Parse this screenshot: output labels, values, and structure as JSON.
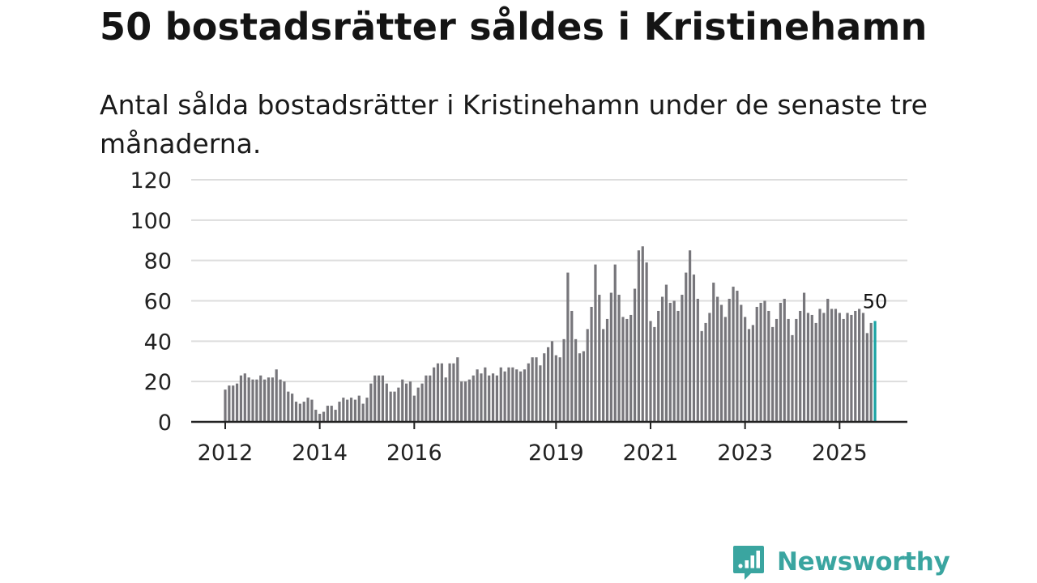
{
  "header": {
    "title": "50 bostadsrätter såldes i Kristinehamn",
    "subtitle": "Antal sålda bostadsrätter i Kristinehamn under de senaste tre månaderna."
  },
  "brand": {
    "name": "Newsworthy",
    "color": "#3aa5a0",
    "icon": "newsworthy-logo-icon"
  },
  "colors": {
    "bar": "#77767b",
    "highlight": "#1aa3a3",
    "grid": "#dddddd",
    "axis": "#222222"
  },
  "chart_data": {
    "type": "bar",
    "title": "50 bostadsrätter såldes i Kristinehamn",
    "subtitle": "Antal sålda bostadsrätter i Kristinehamn under de senaste tre månaderna.",
    "xlabel": "",
    "ylabel": "",
    "ylim": [
      0,
      120
    ],
    "yticks": [
      "0",
      "20",
      "40",
      "60",
      "80",
      "100",
      "120"
    ],
    "xticks": [
      {
        "label": "2012",
        "index": 0
      },
      {
        "label": "2014",
        "index": 24
      },
      {
        "label": "2016",
        "index": 48
      },
      {
        "label": "2019",
        "index": 84
      },
      {
        "label": "2021",
        "index": 108
      },
      {
        "label": "2023",
        "index": 132
      },
      {
        "label": "2025",
        "index": 156
      }
    ],
    "grid": true,
    "last_value_label": "50",
    "values": [
      16,
      18,
      18,
      19,
      23,
      24,
      22,
      21,
      21,
      23,
      21,
      22,
      22,
      26,
      21,
      20,
      15,
      14,
      10,
      9,
      10,
      12,
      11,
      6,
      4,
      5,
      8,
      8,
      6,
      10,
      12,
      11,
      12,
      11,
      13,
      9,
      12,
      19,
      23,
      23,
      23,
      19,
      15,
      15,
      17,
      21,
      19,
      20,
      13,
      17,
      19,
      23,
      23,
      27,
      29,
      29,
      22,
      29,
      29,
      32,
      20,
      20,
      21,
      23,
      26,
      24,
      27,
      23,
      24,
      23,
      27,
      25,
      27,
      27,
      26,
      25,
      26,
      29,
      32,
      32,
      28,
      34,
      37,
      40,
      33,
      32,
      41,
      74,
      55,
      41,
      34,
      35,
      46,
      57,
      78,
      63,
      46,
      51,
      64,
      78,
      63,
      52,
      51,
      53,
      66,
      85,
      87,
      79,
      50,
      47,
      55,
      62,
      68,
      59,
      60,
      55,
      63,
      74,
      85,
      73,
      61,
      45,
      49,
      54,
      69,
      62,
      58,
      52,
      61,
      67,
      65,
      58,
      52,
      46,
      48,
      57,
      59,
      60,
      55,
      47,
      51,
      59,
      61,
      51,
      43,
      51,
      55,
      64,
      54,
      53,
      49,
      56,
      54,
      61,
      56,
      56,
      54,
      51,
      54,
      53,
      55,
      56,
      54,
      44,
      49,
      50
    ]
  }
}
